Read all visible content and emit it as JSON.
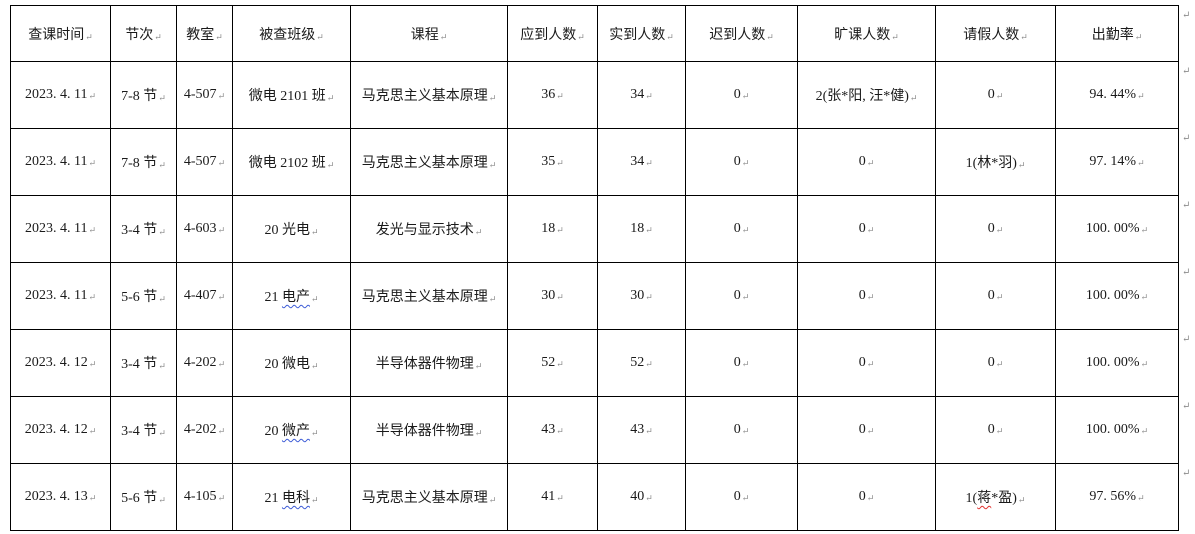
{
  "marks": {
    "cell_end": "↵",
    "row_end": "↵"
  },
  "colors": {
    "border": "#000000",
    "text": "#1a1a1a",
    "formatting_mark": "#8c8c8c",
    "grammar_wavy_underline": "#3c5bd6",
    "spell_wavy_underline": "#e0312e"
  },
  "table": {
    "headers": [
      "查课时间",
      "节次",
      "教室",
      "被查班级",
      "课程",
      "应到人数",
      "实到人数",
      "迟到人数",
      "旷课人数",
      "请假人数",
      "出勤率"
    ],
    "rows": [
      {
        "cells": [
          "2023. 4. 11",
          "7-8 节",
          "4-507",
          "微电 2101 班",
          "马克思主义基本原理",
          "36",
          "34",
          "0",
          "2(张*阳, 汪*健)",
          "0",
          "94. 44%"
        ]
      },
      {
        "cells": [
          "2023. 4. 11",
          "7-8 节",
          "4-507",
          "微电 2102 班",
          "马克思主义基本原理",
          "35",
          "34",
          "0",
          "0",
          "1(林*羽)",
          "97. 14%"
        ]
      },
      {
        "cells": [
          "2023. 4. 11",
          "3-4 节",
          "4-603",
          "20 光电",
          "发光与显示技术",
          "18",
          "18",
          "0",
          "0",
          "0",
          "100. 00%"
        ]
      },
      {
        "cells": [
          "2023. 4. 11",
          "5-6 节",
          "4-407",
          {
            "pre": "21 ",
            "wavy": "电产",
            "style": "grammar"
          },
          "马克思主义基本原理",
          "30",
          "30",
          "0",
          "0",
          "0",
          "100. 00%"
        ]
      },
      {
        "cells": [
          "2023. 4. 12",
          "3-4 节",
          "4-202",
          "20 微电",
          "半导体器件物理",
          "52",
          "52",
          "0",
          "0",
          "0",
          "100. 00%"
        ]
      },
      {
        "cells": [
          "2023. 4. 12",
          "3-4 节",
          "4-202",
          {
            "pre": "20 ",
            "wavy": "微产",
            "style": "grammar"
          },
          "半导体器件物理",
          "43",
          "43",
          "0",
          "0",
          "0",
          "100. 00%"
        ]
      },
      {
        "cells": [
          "2023. 4. 13",
          "5-6 节",
          "4-105",
          {
            "pre": "21 ",
            "wavy": "电科",
            "style": "grammar"
          },
          "马克思主义基本原理",
          "41",
          "40",
          "0",
          "0",
          {
            "pre": "1(",
            "wavy": "蒋",
            "post": "*盈)",
            "style": "spell"
          },
          "97. 56%"
        ]
      }
    ]
  }
}
